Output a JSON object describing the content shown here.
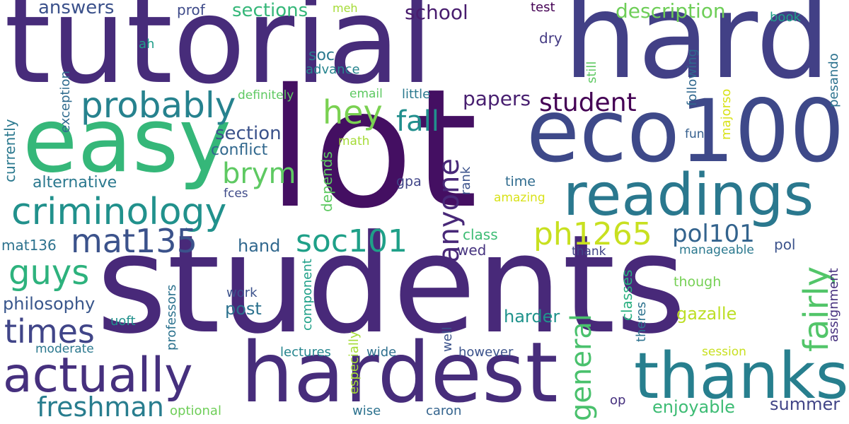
{
  "wordcloud": {
    "background": "#ffffff",
    "words": [
      {
        "text": "tutorial",
        "color": "#472c7a"
      },
      {
        "text": "hard",
        "color": "#424086"
      },
      {
        "text": "lot",
        "color": "#440f62"
      },
      {
        "text": "students",
        "color": "#482979"
      },
      {
        "text": "easy",
        "color": "#35b779"
      },
      {
        "text": "eco100",
        "color": "#3e4989"
      },
      {
        "text": "hardest",
        "color": "#472d7b"
      },
      {
        "text": "readings",
        "color": "#2a788e"
      },
      {
        "text": "thanks",
        "color": "#277f8e"
      },
      {
        "text": "criminology",
        "color": "#21918c"
      },
      {
        "text": "actually",
        "color": "#46307e"
      },
      {
        "text": "probably",
        "color": "#26828e"
      },
      {
        "text": "mat135",
        "color": "#3b528b"
      },
      {
        "text": "times",
        "color": "#404588"
      },
      {
        "text": "guys",
        "color": "#2db27d"
      },
      {
        "text": "freshman",
        "color": "#287d8e"
      },
      {
        "text": "hey",
        "color": "#7ad151"
      },
      {
        "text": "brym",
        "color": "#5ec962"
      },
      {
        "text": "soc101",
        "color": "#1fa088"
      },
      {
        "text": "ph1265",
        "color": "#c8e020"
      },
      {
        "text": "pol101",
        "color": "#33638d"
      },
      {
        "text": "fall",
        "color": "#218f8d"
      },
      {
        "text": "student",
        "color": "#440154"
      },
      {
        "text": "anyone",
        "color": "#482878"
      },
      {
        "text": "general",
        "color": "#4ac16d"
      },
      {
        "text": "fairly",
        "color": "#52c569"
      },
      {
        "text": "school",
        "color": "#481c6e"
      },
      {
        "text": "papers",
        "color": "#481f70"
      },
      {
        "text": "answers",
        "color": "#3b518b"
      },
      {
        "text": "sections",
        "color": "#35b779"
      },
      {
        "text": "description",
        "color": "#6ece58"
      },
      {
        "text": "section",
        "color": "#3b528b"
      },
      {
        "text": "conflict",
        "color": "#31688e"
      },
      {
        "text": "alternative",
        "color": "#2a788e"
      },
      {
        "text": "philosophy",
        "color": "#39568c"
      },
      {
        "text": "enjoyable",
        "color": "#3dbc74"
      },
      {
        "text": "summer",
        "color": "#414487"
      },
      {
        "text": "harder",
        "color": "#20938c"
      },
      {
        "text": "gazalle",
        "color": "#bddf26"
      },
      {
        "text": "hand",
        "color": "#31688e"
      },
      {
        "text": "post",
        "color": "#2c728e"
      },
      {
        "text": "prof",
        "color": "#3e4a89"
      },
      {
        "text": "test",
        "color": "#440154"
      },
      {
        "text": "book",
        "color": "#1f9e89"
      },
      {
        "text": "dry",
        "color": "#443a83"
      },
      {
        "text": "meh",
        "color": "#a5db36"
      },
      {
        "text": "ah",
        "color": "#1f9e89"
      },
      {
        "text": "soc",
        "color": "#2a788e"
      },
      {
        "text": "advance",
        "color": "#25848e"
      },
      {
        "text": "definitely",
        "color": "#5ec962"
      },
      {
        "text": "email",
        "color": "#5ec962"
      },
      {
        "text": "little",
        "color": "#2a788e"
      },
      {
        "text": "math",
        "color": "#a5db36"
      },
      {
        "text": "gpa",
        "color": "#404588"
      },
      {
        "text": "time",
        "color": "#2f6b8e"
      },
      {
        "text": "fces",
        "color": "#3e4a89"
      },
      {
        "text": "amazing",
        "color": "#d8e219"
      },
      {
        "text": "class",
        "color": "#3dbc74"
      },
      {
        "text": "wed",
        "color": "#46337f"
      },
      {
        "text": "thank",
        "color": "#414487"
      },
      {
        "text": "manageable",
        "color": "#2a788e"
      },
      {
        "text": "pol",
        "color": "#3b528b"
      },
      {
        "text": "mat136",
        "color": "#2c728e"
      },
      {
        "text": "work",
        "color": "#3b518b"
      },
      {
        "text": "uoft",
        "color": "#21918c"
      },
      {
        "text": "moderate",
        "color": "#2a788e"
      },
      {
        "text": "lectures",
        "color": "#25858e"
      },
      {
        "text": "wide",
        "color": "#2e6f8e"
      },
      {
        "text": "however",
        "color": "#3b528b"
      },
      {
        "text": "though",
        "color": "#75d054"
      },
      {
        "text": "session",
        "color": "#c8e020"
      },
      {
        "text": "optional",
        "color": "#6ece58"
      },
      {
        "text": "wise",
        "color": "#2c728e"
      },
      {
        "text": "caron",
        "color": "#33638d"
      },
      {
        "text": "op",
        "color": "#46307e"
      },
      {
        "text": "fun",
        "color": "#355f8d"
      },
      {
        "text": "currently",
        "color": "#2a788e"
      },
      {
        "text": "exception",
        "color": "#2f6b8e"
      },
      {
        "text": "depends",
        "color": "#5ec962"
      },
      {
        "text": "rank",
        "color": "#3b528b"
      },
      {
        "text": "professors",
        "color": "#2c728e"
      },
      {
        "text": "component",
        "color": "#1fa088"
      },
      {
        "text": "especially",
        "color": "#a5db36"
      },
      {
        "text": "well",
        "color": "#3b528b"
      },
      {
        "text": "classes",
        "color": "#29af7f"
      },
      {
        "text": "theres",
        "color": "#2c728e"
      },
      {
        "text": "assignment",
        "color": "#46307e"
      },
      {
        "text": "still",
        "color": "#5ec962"
      },
      {
        "text": "following",
        "color": "#31688e"
      },
      {
        "text": "majorso",
        "color": "#d8e219"
      },
      {
        "text": "pesando",
        "color": "#2c728e"
      }
    ]
  }
}
